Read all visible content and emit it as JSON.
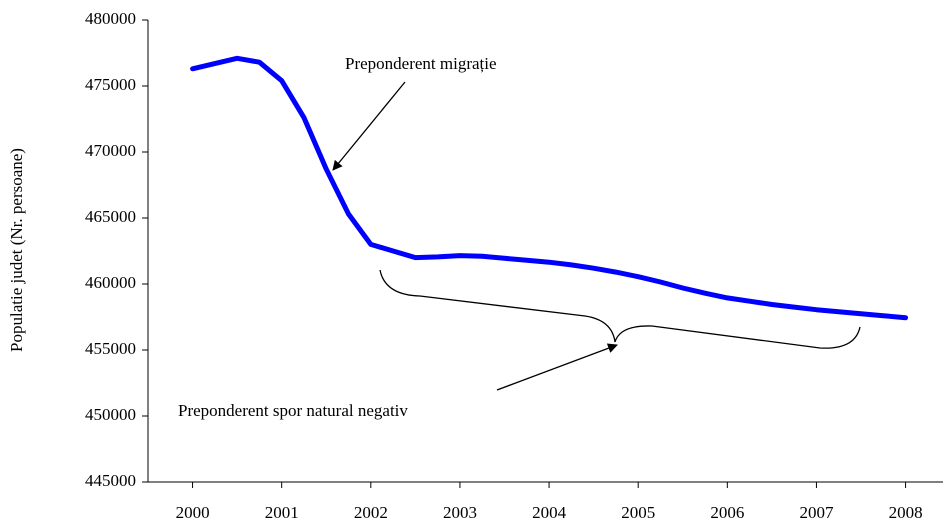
{
  "chart_data": {
    "type": "line",
    "y_label": "Populatie judet (Nr. persoane)",
    "x": [
      2000,
      2000.25,
      2000.5,
      2000.75,
      2001,
      2001.25,
      2001.5,
      2001.75,
      2002,
      2002.25,
      2002.5,
      2002.75,
      2003,
      2003.25,
      2003.5,
      2003.75,
      2004,
      2004.25,
      2004.5,
      2004.75,
      2005,
      2005.25,
      2005.5,
      2005.75,
      2006,
      2006.25,
      2006.5,
      2006.75,
      2007,
      2007.25,
      2007.5,
      2007.75,
      2008
    ],
    "values": [
      476300,
      476700,
      477100,
      476800,
      475400,
      472600,
      468700,
      465300,
      463000,
      462500,
      462000,
      462050,
      462150,
      462100,
      461950,
      461800,
      461650,
      461450,
      461200,
      460900,
      460550,
      460150,
      459700,
      459300,
      458950,
      458700,
      458450,
      458250,
      458050,
      457900,
      457750,
      457600,
      457450
    ],
    "color": "#0000ff",
    "xlim": [
      1999.5,
      2008.42
    ],
    "xticks": [
      2000,
      2001,
      2002,
      2003,
      2004,
      2005,
      2006,
      2007,
      2008
    ],
    "ylim": [
      445000,
      480000
    ],
    "yticks": [
      445000,
      450000,
      455000,
      460000,
      465000,
      470000,
      475000,
      480000
    ],
    "annotations": [
      "Preponderent migrație",
      "Preponderent spor natural negativ"
    ]
  }
}
